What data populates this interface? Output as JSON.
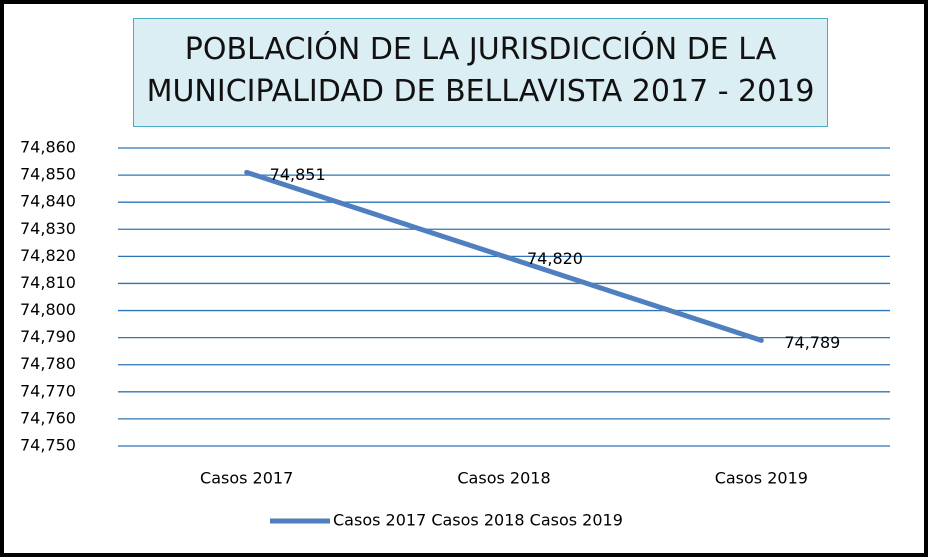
{
  "chart_data": {
    "type": "line",
    "title": "POBLACIÓN DE LA JURISDICCIÓN DE LA MUNICIPALIDAD DE BELLAVISTA 2017 - 2019",
    "categories": [
      "Casos 2017",
      "Casos 2018",
      "Casos 2019"
    ],
    "series": [
      {
        "name": "Casos 2017 Casos 2018 Casos 2019",
        "color": "#4f7fbf",
        "values": [
          74851,
          74820,
          74789
        ],
        "value_labels": [
          "74,851",
          "74,820",
          "74,789"
        ]
      }
    ],
    "ylim": [
      74750,
      74860
    ],
    "yticks": [
      {
        "value": 74750,
        "label": "74,750"
      },
      {
        "value": 74760,
        "label": "74,760"
      },
      {
        "value": 74770,
        "label": "74,770"
      },
      {
        "value": 74780,
        "label": "74,780"
      },
      {
        "value": 74790,
        "label": "74,790"
      },
      {
        "value": 74800,
        "label": "74,800"
      },
      {
        "value": 74810,
        "label": "74,810"
      },
      {
        "value": 74820,
        "label": "74,820"
      },
      {
        "value": 74830,
        "label": "74,830"
      },
      {
        "value": 74840,
        "label": "74,840"
      },
      {
        "value": 74850,
        "label": "74,850"
      },
      {
        "value": 74860,
        "label": "74,860"
      }
    ],
    "grid": true,
    "legend": "bottom"
  }
}
